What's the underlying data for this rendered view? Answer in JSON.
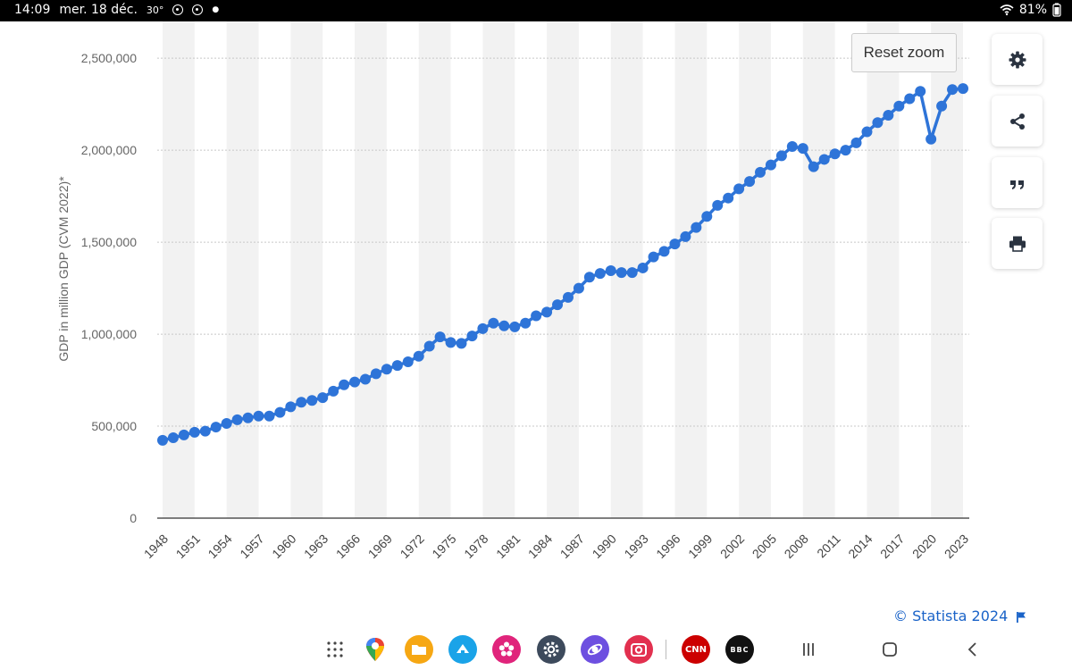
{
  "status_bar": {
    "time": "14:09",
    "date": "mer. 18 déc.",
    "temperature": "30°",
    "battery": "81%"
  },
  "toolbar": {
    "reset_zoom_label": "Reset zoom",
    "buttons": [
      "gear-icon",
      "share-icon",
      "quote-icon",
      "print-icon"
    ]
  },
  "credit": {
    "text": "© Statista 2024"
  },
  "colors": {
    "line": "#2e74d8",
    "credit": "#1a63c8",
    "band": "#f2f2f2",
    "grid": "#c8c8c8"
  },
  "dock": {
    "apps": [
      "apps-grid-icon",
      "maps-icon",
      "files-icon",
      "upload-icon",
      "flower-icon",
      "settings-icon",
      "browser-icon",
      "camera-icon",
      "cnn-icon",
      "bbc-icon"
    ],
    "app_texts": {
      "cnn": "CNN",
      "bbc": "BBC"
    },
    "nav": [
      "recents-icon",
      "home-icon",
      "back-icon"
    ]
  },
  "chart_data": {
    "type": "line",
    "title": "",
    "ylabel": "GDP in million GDP (CVM 2022)*",
    "xlabel": "",
    "ylim": [
      0,
      2700000
    ],
    "yticks": [
      0,
      500000,
      1000000,
      1500000,
      2000000,
      2500000
    ],
    "ytick_labels": [
      "0",
      "500,000",
      "1,000,000",
      "1,500,000",
      "2,000,000",
      "2,500,000"
    ],
    "xtick_labels": [
      "1948",
      "1951",
      "1954",
      "1957",
      "1960",
      "1963",
      "1966",
      "1969",
      "1972",
      "1975",
      "1978",
      "1981",
      "1984",
      "1987",
      "1990",
      "1993",
      "1996",
      "1999",
      "2002",
      "2005",
      "2008",
      "2011",
      "2014",
      "2017",
      "2020",
      "2023"
    ],
    "grid": true,
    "x": [
      1948,
      1949,
      1950,
      1951,
      1952,
      1953,
      1954,
      1955,
      1956,
      1957,
      1958,
      1959,
      1960,
      1961,
      1962,
      1963,
      1964,
      1965,
      1966,
      1967,
      1968,
      1969,
      1970,
      1971,
      1972,
      1973,
      1974,
      1975,
      1976,
      1977,
      1978,
      1979,
      1980,
      1981,
      1982,
      1983,
      1984,
      1985,
      1986,
      1987,
      1988,
      1989,
      1990,
      1991,
      1992,
      1993,
      1994,
      1995,
      1996,
      1997,
      1998,
      1999,
      2000,
      2001,
      2002,
      2003,
      2004,
      2005,
      2006,
      2007,
      2008,
      2009,
      2010,
      2011,
      2012,
      2013,
      2014,
      2015,
      2016,
      2017,
      2018,
      2019,
      2020,
      2021,
      2022,
      2023
    ],
    "values": [
      423000,
      437000,
      452000,
      467000,
      473000,
      495000,
      515000,
      535000,
      545000,
      555000,
      555000,
      575000,
      605000,
      630000,
      640000,
      655000,
      690000,
      725000,
      740000,
      755000,
      785000,
      810000,
      830000,
      850000,
      880000,
      935000,
      985000,
      955000,
      950000,
      990000,
      1030000,
      1060000,
      1045000,
      1040000,
      1060000,
      1100000,
      1120000,
      1160000,
      1200000,
      1250000,
      1310000,
      1330000,
      1345000,
      1335000,
      1335000,
      1360000,
      1420000,
      1450000,
      1490000,
      1530000,
      1580000,
      1640000,
      1700000,
      1740000,
      1790000,
      1830000,
      1880000,
      1920000,
      1970000,
      2020000,
      2010000,
      1910000,
      1950000,
      1980000,
      2000000,
      2040000,
      2100000,
      2150000,
      2190000,
      2240000,
      2280000,
      2320000,
      2060000,
      2240000,
      2330000,
      2335000
    ]
  }
}
